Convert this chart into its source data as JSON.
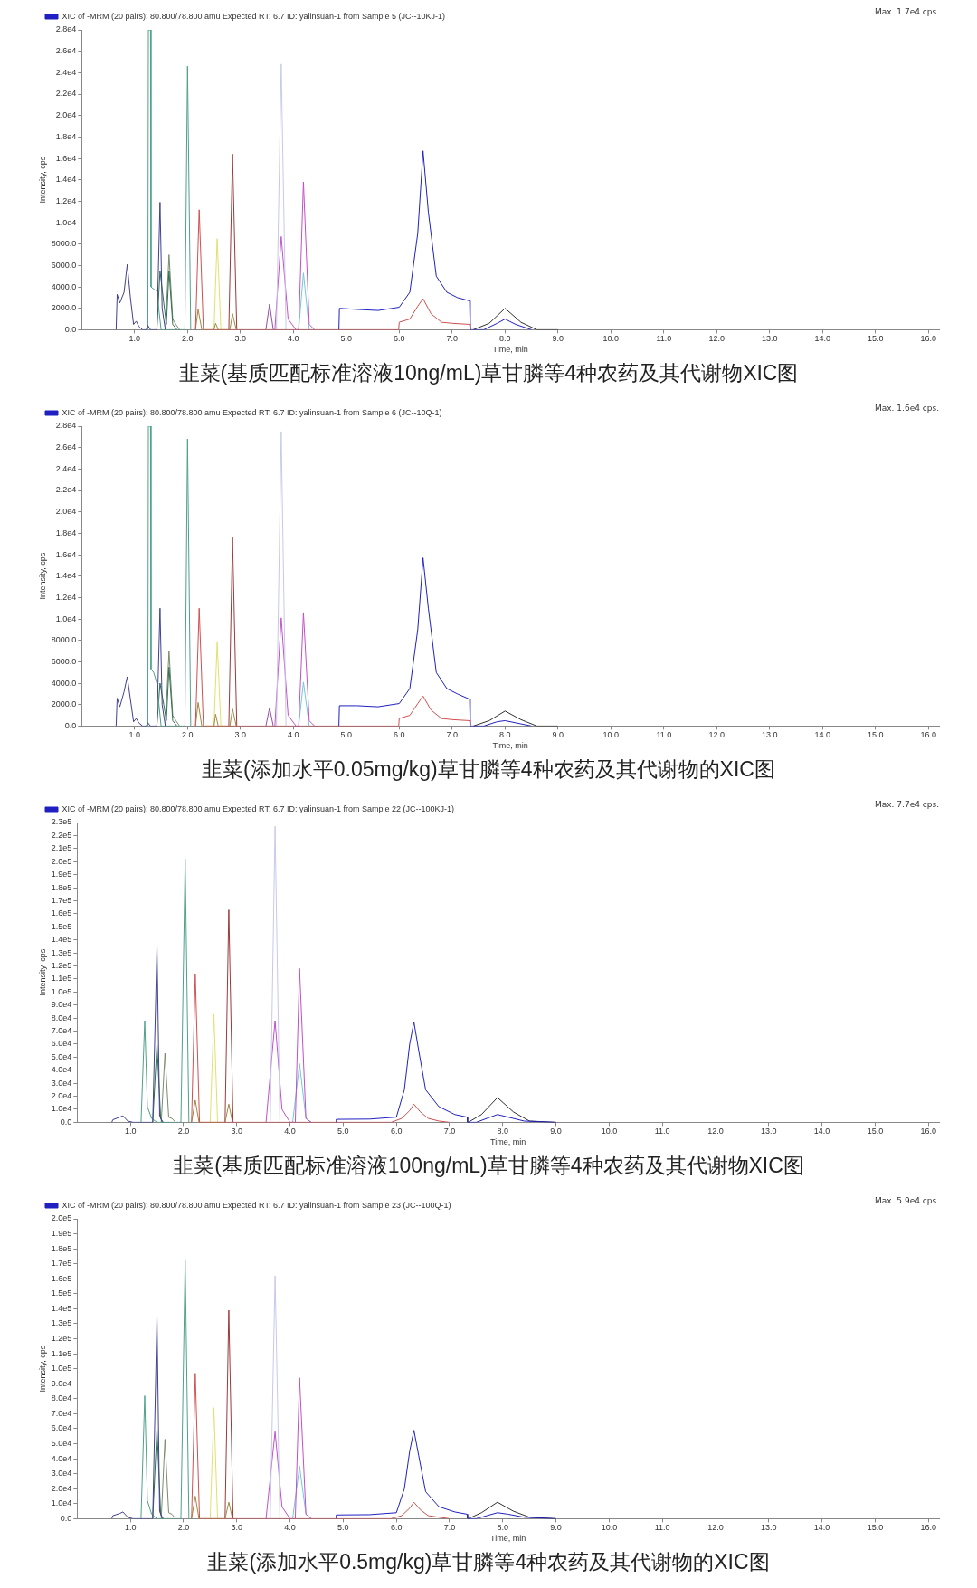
{
  "chart_data": [
    {
      "type": "line",
      "title": "韭菜(基质匹配标准溶液10ng/mL)草甘膦等4种农药及其代谢物XIC图",
      "xlabel": "Time, min",
      "ylabel": "Intensity, cps",
      "legend": "top left",
      "marker": "none",
      "annotations": [
        "Max. 1.7e4 cps."
      ],
      "xlim": [
        0,
        16.2
      ],
      "xticks": [
        {
          "value": 1,
          "label": "1.0"
        },
        {
          "value": 2,
          "label": "2.0"
        },
        {
          "value": 3,
          "label": "3.0"
        },
        {
          "value": 4,
          "label": "4.0"
        },
        {
          "value": 5,
          "label": "5.0"
        },
        {
          "value": 6,
          "label": "6.0"
        },
        {
          "value": 7,
          "label": "7.0"
        },
        {
          "value": 8,
          "label": "8.0"
        },
        {
          "value": 9,
          "label": "9.0"
        },
        {
          "value": 10,
          "label": "10.0"
        },
        {
          "value": 11,
          "label": "11.0"
        },
        {
          "value": 12,
          "label": "12.0"
        },
        {
          "value": 13,
          "label": "13.0"
        },
        {
          "value": 14,
          "label": "14.0"
        },
        {
          "value": 15,
          "label": "15.0"
        },
        {
          "value": 16,
          "label": "16.0"
        }
      ],
      "ylim": [
        0,
        28000
      ],
      "yticks": [
        {
          "value": 0,
          "label": "0.0"
        },
        {
          "value": 2000,
          "label": "2000.0"
        },
        {
          "value": 4000,
          "label": "4000.0"
        },
        {
          "value": 6000,
          "label": "6000.0"
        },
        {
          "value": 8000,
          "label": "8000.0"
        },
        {
          "value": 10000,
          "label": "1.0e4"
        },
        {
          "value": 12000,
          "label": "1.2e4"
        },
        {
          "value": 14000,
          "label": "1.4e4"
        },
        {
          "value": 16000,
          "label": "1.6e4"
        },
        {
          "value": 18000,
          "label": "1.8e4"
        },
        {
          "value": 20000,
          "label": "2.0e4"
        },
        {
          "value": 22000,
          "label": "2.2e4"
        },
        {
          "value": 24000,
          "label": "2.4e4"
        },
        {
          "value": 26000,
          "label": "2.6e4"
        },
        {
          "value": 28000,
          "label": "2.8e4"
        }
      ],
      "series": [
        {
          "color": "#404090",
          "x": [
            0.65,
            0.67,
            0.72,
            0.8,
            0.86,
            0.92,
            0.98,
            1.03,
            1.08,
            1.15,
            1.22,
            1.25,
            1.3,
            1.42,
            1.48,
            1.52,
            1.58
          ],
          "values": [
            0,
            3300,
            2500,
            3500,
            6100,
            3000,
            500,
            800,
            300,
            0,
            0,
            400,
            0,
            0,
            11900,
            2000,
            0
          ]
        },
        {
          "color": "#4fa08a",
          "x": [
            1.22,
            1.25,
            1.26,
            1.3,
            1.31,
            1.36,
            1.42,
            1.5,
            1.95,
            2.0,
            2.06
          ],
          "values": [
            0,
            0,
            28000,
            28000,
            4000,
            3800,
            3600,
            0,
            0,
            24600,
            0
          ]
        },
        {
          "color": "#2f6f4f",
          "x": [
            1.42,
            1.48,
            1.55,
            1.6,
            1.65,
            1.72,
            1.8
          ],
          "values": [
            0,
            5500,
            2500,
            500,
            5500,
            500,
            0
          ]
        },
        {
          "color": "#7a8a70",
          "x": [
            1.58,
            1.65,
            1.72,
            1.78,
            1.85
          ],
          "values": [
            0,
            7000,
            1000,
            500,
            0
          ]
        },
        {
          "color": "#d05050",
          "x": [
            2.15,
            2.22,
            2.3,
            5.99,
            6.0,
            6.2,
            6.35,
            6.45,
            6.6,
            6.8,
            7.0,
            7.33,
            7.34
          ],
          "values": [
            0,
            11200,
            0,
            0,
            700,
            1000,
            2200,
            2900,
            1500,
            700,
            600,
            500,
            0
          ]
        },
        {
          "color": "#a08a40",
          "x": [
            2.15,
            2.2,
            2.27,
            2.5,
            2.53,
            2.58,
            2.8,
            2.85,
            2.92
          ],
          "values": [
            0,
            1900,
            0,
            0,
            600,
            0,
            0,
            1500,
            0
          ]
        },
        {
          "color": "#e0e070",
          "x": [
            2.5,
            2.56,
            2.63
          ],
          "values": [
            0,
            8500,
            0
          ]
        },
        {
          "color": "#9a3a3a",
          "x": [
            2.78,
            2.85,
            2.93
          ],
          "values": [
            0,
            16400,
            0
          ]
        },
        {
          "color": "#9050a0",
          "x": [
            3.48,
            3.55,
            3.62
          ],
          "values": [
            0,
            2400,
            0
          ]
        },
        {
          "color": "#c8c8ec",
          "x": [
            3.68,
            3.77,
            3.86
          ],
          "values": [
            0,
            24800,
            0
          ]
        },
        {
          "color": "#c050c8",
          "x": [
            3.65,
            3.77,
            3.9,
            4.05,
            4.1,
            4.19,
            4.3,
            4.4
          ],
          "values": [
            0,
            8700,
            1000,
            0,
            0,
            13800,
            500,
            0
          ]
        },
        {
          "color": "#70c8d8",
          "x": [
            4.1,
            4.19,
            4.3
          ],
          "values": [
            0,
            5300,
            0
          ]
        },
        {
          "name": "XIC of -MRM (20 pairs): 80.800/78.800 amu Expected RT: 6.7 ID: yalinsuan-1 from Sample 5 (JC--10KJ-1)",
          "color": "#2020c0",
          "x": [
            4.86,
            4.87,
            5.2,
            5.6,
            6.0,
            6.2,
            6.35,
            6.45,
            6.55,
            6.7,
            6.9,
            7.1,
            7.33,
            7.34,
            7.6,
            7.85,
            8.0,
            8.2,
            8.5
          ],
          "values": [
            0,
            2000,
            1900,
            1800,
            2100,
            3500,
            9000,
            16700,
            11000,
            5000,
            3500,
            3000,
            2700,
            0,
            0,
            600,
            1000,
            500,
            0
          ]
        },
        {
          "color": "#303030",
          "x": [
            7.4,
            7.7,
            8.0,
            8.3,
            8.6,
            9.0
          ],
          "values": [
            0,
            600,
            2000,
            700,
            0,
            0
          ]
        }
      ]
    },
    {
      "type": "line",
      "title": "韭菜(添加水平0.05mg/kg)草甘膦等4种农药及其代谢物的XIC图",
      "xlabel": "Time, min",
      "ylabel": "Intensity, cps",
      "legend": "top left",
      "marker": "none",
      "annotations": [
        "Max. 1.6e4 cps."
      ],
      "xlim": [
        0,
        16.2
      ],
      "xticks": [
        {
          "value": 1,
          "label": "1.0"
        },
        {
          "value": 2,
          "label": "2.0"
        },
        {
          "value": 3,
          "label": "3.0"
        },
        {
          "value": 4,
          "label": "4.0"
        },
        {
          "value": 5,
          "label": "5.0"
        },
        {
          "value": 6,
          "label": "6.0"
        },
        {
          "value": 7,
          "label": "7.0"
        },
        {
          "value": 8,
          "label": "8.0"
        },
        {
          "value": 9,
          "label": "9.0"
        },
        {
          "value": 10,
          "label": "10.0"
        },
        {
          "value": 11,
          "label": "11.0"
        },
        {
          "value": 12,
          "label": "12.0"
        },
        {
          "value": 13,
          "label": "13.0"
        },
        {
          "value": 14,
          "label": "14.0"
        },
        {
          "value": 15,
          "label": "15.0"
        },
        {
          "value": 16,
          "label": "16.0"
        }
      ],
      "ylim": [
        0,
        28000
      ],
      "yticks": [
        {
          "value": 0,
          "label": "0.0"
        },
        {
          "value": 2000,
          "label": "2000.0"
        },
        {
          "value": 4000,
          "label": "4000.0"
        },
        {
          "value": 6000,
          "label": "6000.0"
        },
        {
          "value": 8000,
          "label": "8000.0"
        },
        {
          "value": 10000,
          "label": "1.0e4"
        },
        {
          "value": 12000,
          "label": "1.2e4"
        },
        {
          "value": 14000,
          "label": "1.4e4"
        },
        {
          "value": 16000,
          "label": "1.6e4"
        },
        {
          "value": 18000,
          "label": "1.8e4"
        },
        {
          "value": 20000,
          "label": "2.0e4"
        },
        {
          "value": 22000,
          "label": "2.2e4"
        },
        {
          "value": 24000,
          "label": "2.4e4"
        },
        {
          "value": 26000,
          "label": "2.6e4"
        },
        {
          "value": 28000,
          "label": "2.8e4"
        }
      ],
      "series": [
        {
          "color": "#404090",
          "x": [
            0.65,
            0.67,
            0.72,
            0.8,
            0.86,
            0.92,
            0.98,
            1.03,
            1.08,
            1.15,
            1.22,
            1.25,
            1.3,
            1.42,
            1.48,
            1.52,
            1.58
          ],
          "values": [
            0,
            2600,
            1800,
            3200,
            4600,
            2500,
            400,
            700,
            300,
            0,
            0,
            300,
            0,
            0,
            11000,
            2000,
            0
          ]
        },
        {
          "color": "#4fa08a",
          "x": [
            1.22,
            1.25,
            1.26,
            1.3,
            1.31,
            1.36,
            1.42,
            1.5,
            1.95,
            2.0,
            2.06
          ],
          "values": [
            0,
            0,
            28000,
            28000,
            5300,
            5000,
            4000,
            0,
            0,
            26800,
            0
          ]
        },
        {
          "color": "#2f6f4f",
          "x": [
            1.42,
            1.48,
            1.55,
            1.6,
            1.65,
            1.72,
            1.8
          ],
          "values": [
            0,
            4000,
            2000,
            500,
            5500,
            500,
            0
          ]
        },
        {
          "color": "#7a8a70",
          "x": [
            1.58,
            1.65,
            1.72,
            1.78,
            1.85
          ],
          "values": [
            0,
            7000,
            1000,
            500,
            0
          ]
        },
        {
          "color": "#d05050",
          "x": [
            2.15,
            2.22,
            2.3,
            5.99,
            6.0,
            6.2,
            6.35,
            6.45,
            6.6,
            6.8,
            7.0,
            7.33,
            7.34
          ],
          "values": [
            0,
            11000,
            0,
            0,
            700,
            1000,
            2100,
            2800,
            1500,
            700,
            600,
            500,
            0
          ]
        },
        {
          "color": "#a08a40",
          "x": [
            2.15,
            2.2,
            2.27,
            2.5,
            2.53,
            2.58,
            2.8,
            2.85,
            2.92
          ],
          "values": [
            0,
            2200,
            0,
            0,
            1100,
            0,
            0,
            1600,
            0
          ]
        },
        {
          "color": "#e0e070",
          "x": [
            2.5,
            2.56,
            2.63
          ],
          "values": [
            0,
            7800,
            0
          ]
        },
        {
          "color": "#9a3a3a",
          "x": [
            2.78,
            2.85,
            2.93
          ],
          "values": [
            0,
            17600,
            0
          ]
        },
        {
          "color": "#9050a0",
          "x": [
            3.48,
            3.55,
            3.62
          ],
          "values": [
            0,
            1700,
            0
          ]
        },
        {
          "color": "#c8c8ec",
          "x": [
            3.68,
            3.77,
            3.86
          ],
          "values": [
            0,
            27500,
            0
          ]
        },
        {
          "color": "#c050c8",
          "x": [
            3.65,
            3.77,
            3.9,
            4.05,
            4.1,
            4.19,
            4.3,
            4.4
          ],
          "values": [
            0,
            10100,
            1000,
            0,
            0,
            10600,
            500,
            0
          ]
        },
        {
          "color": "#70c8d8",
          "x": [
            4.1,
            4.19,
            4.3
          ],
          "values": [
            0,
            4100,
            0
          ]
        },
        {
          "name": "XIC of -MRM (20 pairs): 80.800/78.800 amu Expected RT: 6.7 ID: yalinsuan-1 from Sample 6 (JC--10Q-1)",
          "color": "#2020c0",
          "x": [
            4.86,
            4.87,
            5.2,
            5.6,
            6.0,
            6.2,
            6.35,
            6.45,
            6.55,
            6.7,
            6.9,
            7.1,
            7.33,
            7.34,
            7.6,
            7.85,
            8.0,
            8.2,
            8.5
          ],
          "values": [
            0,
            1900,
            1900,
            1800,
            2100,
            3500,
            9000,
            15700,
            11000,
            5000,
            3500,
            3000,
            2500,
            0,
            0,
            400,
            500,
            300,
            0
          ]
        },
        {
          "color": "#303030",
          "x": [
            7.4,
            7.7,
            8.0,
            8.3,
            8.6,
            9.0
          ],
          "values": [
            0,
            500,
            1400,
            600,
            0,
            0
          ]
        }
      ]
    },
    {
      "type": "line",
      "title": "韭菜(基质匹配标准溶液100ng/mL)草甘膦等4种农药及其代谢物XIC图",
      "xlabel": "Time, min",
      "ylabel": "Intensity, cps",
      "legend": "top left",
      "marker": "none",
      "annotations": [
        "Max. 7.7e4 cps."
      ],
      "xlim": [
        0,
        16.2
      ],
      "xticks": [
        {
          "value": 1,
          "label": "1.0"
        },
        {
          "value": 2,
          "label": "2.0"
        },
        {
          "value": 3,
          "label": "3.0"
        },
        {
          "value": 4,
          "label": "4.0"
        },
        {
          "value": 5,
          "label": "5.0"
        },
        {
          "value": 6,
          "label": "6.0"
        },
        {
          "value": 7,
          "label": "7.0"
        },
        {
          "value": 8,
          "label": "8.0"
        },
        {
          "value": 9,
          "label": "9.0"
        },
        {
          "value": 10,
          "label": "10.0"
        },
        {
          "value": 11,
          "label": "11.0"
        },
        {
          "value": 12,
          "label": "12.0"
        },
        {
          "value": 13,
          "label": "13.0"
        },
        {
          "value": 14,
          "label": "14.0"
        },
        {
          "value": 15,
          "label": "15.0"
        },
        {
          "value": 16,
          "label": "16.0"
        }
      ],
      "ylim": [
        0,
        230000
      ],
      "yticks": [
        {
          "value": 0,
          "label": "0.0"
        },
        {
          "value": 10000,
          "label": "1.0e4"
        },
        {
          "value": 20000,
          "label": "2.0e4"
        },
        {
          "value": 30000,
          "label": "3.0e4"
        },
        {
          "value": 40000,
          "label": "4.0e4"
        },
        {
          "value": 50000,
          "label": "5.0e4"
        },
        {
          "value": 60000,
          "label": "6.0e4"
        },
        {
          "value": 70000,
          "label": "7.0e4"
        },
        {
          "value": 80000,
          "label": "8.0e4"
        },
        {
          "value": 90000,
          "label": "9.0e4"
        },
        {
          "value": 100000,
          "label": "1.0e5"
        },
        {
          "value": 110000,
          "label": "1.1e5"
        },
        {
          "value": 120000,
          "label": "1.2e5"
        },
        {
          "value": 130000,
          "label": "1.3e5"
        },
        {
          "value": 140000,
          "label": "1.4e5"
        },
        {
          "value": 150000,
          "label": "1.5e5"
        },
        {
          "value": 160000,
          "label": "1.6e5"
        },
        {
          "value": 170000,
          "label": "1.7e5"
        },
        {
          "value": 180000,
          "label": "1.8e5"
        },
        {
          "value": 190000,
          "label": "1.9e5"
        },
        {
          "value": 200000,
          "label": "2.0e5"
        },
        {
          "value": 210000,
          "label": "2.1e5"
        },
        {
          "value": 220000,
          "label": "2.2e5"
        },
        {
          "value": 230000,
          "label": "2.3e5"
        }
      ],
      "series": [
        {
          "color": "#404090",
          "x": [
            0.65,
            0.67,
            0.8,
            0.86,
            0.95,
            1.05,
            1.42,
            1.5,
            1.55,
            1.6
          ],
          "values": [
            0,
            2000,
            4000,
            5000,
            1000,
            0,
            0,
            135000,
            5000,
            0
          ]
        },
        {
          "color": "#4fa08a",
          "x": [
            1.2,
            1.27,
            1.32,
            1.4,
            1.5,
            1.95,
            2.03,
            2.1
          ],
          "values": [
            0,
            78000,
            12000,
            3000,
            0,
            0,
            202000,
            0
          ]
        },
        {
          "color": "#2f6f4f",
          "x": [
            1.42,
            1.5,
            1.57,
            1.62
          ],
          "values": [
            0,
            60000,
            3000,
            0
          ]
        },
        {
          "color": "#7a8a70",
          "x": [
            1.58,
            1.65,
            1.72,
            1.78,
            1.85
          ],
          "values": [
            0,
            53000,
            4000,
            3000,
            0
          ]
        },
        {
          "color": "#d05050",
          "x": [
            2.15,
            2.22,
            2.3,
            5.9,
            6.1,
            6.25,
            6.33,
            6.45,
            6.6,
            6.8,
            7.0
          ],
          "values": [
            0,
            114000,
            0,
            0,
            3000,
            9000,
            14000,
            8000,
            3000,
            1000,
            0
          ]
        },
        {
          "color": "#a08a40",
          "x": [
            2.15,
            2.22,
            2.29,
            2.78,
            2.85,
            2.92
          ],
          "values": [
            0,
            17000,
            0,
            0,
            14000,
            0
          ]
        },
        {
          "color": "#e0e070",
          "x": [
            2.5,
            2.57,
            2.64
          ],
          "values": [
            0,
            83000,
            0
          ]
        },
        {
          "color": "#9a3a3a",
          "x": [
            2.78,
            2.85,
            2.93
          ],
          "values": [
            0,
            163000,
            0
          ]
        },
        {
          "color": "#c8c8ec",
          "x": [
            3.63,
            3.72,
            3.81
          ],
          "values": [
            0,
            227000,
            0
          ]
        },
        {
          "color": "#c050c8",
          "x": [
            3.55,
            3.72,
            3.85,
            4.0,
            4.1,
            4.18,
            4.3,
            4.4
          ],
          "values": [
            0,
            78000,
            10000,
            0,
            0,
            118000,
            3000,
            0
          ]
        },
        {
          "color": "#70c8d8",
          "x": [
            4.05,
            4.18,
            4.3,
            4.4
          ],
          "values": [
            0,
            45000,
            3000,
            0
          ]
        },
        {
          "name": "XIC of -MRM (20 pairs): 80.800/78.800 amu Expected RT: 6.7 ID: yalinsuan-1 from Sample 22 (JC--100KJ-1)",
          "color": "#2020c0",
          "x": [
            4.86,
            4.87,
            5.5,
            6.0,
            6.15,
            6.25,
            6.33,
            6.42,
            6.55,
            6.8,
            7.1,
            7.33,
            7.34,
            7.5,
            7.7,
            7.9,
            8.1,
            8.4,
            9.0
          ],
          "values": [
            0,
            2300,
            2500,
            4000,
            25000,
            60000,
            77000,
            55000,
            25000,
            12000,
            6000,
            4000,
            0,
            0,
            3000,
            6000,
            4000,
            1000,
            0
          ]
        },
        {
          "color": "#303030",
          "x": [
            7.35,
            7.6,
            7.9,
            8.2,
            8.5,
            9.0
          ],
          "values": [
            0,
            6000,
            19000,
            8000,
            1000,
            0
          ]
        }
      ]
    },
    {
      "type": "line",
      "title": "韭菜(添加水平0.5mg/kg)草甘膦等4种农药及其代谢物的XIC图",
      "xlabel": "Time, min",
      "ylabel": "Intensity, cps",
      "legend": "top left",
      "marker": "none",
      "annotations": [
        "Max. 5.9e4 cps."
      ],
      "xlim": [
        0,
        16.2
      ],
      "xticks": [
        {
          "value": 1,
          "label": "1.0"
        },
        {
          "value": 2,
          "label": "2.0"
        },
        {
          "value": 3,
          "label": "3.0"
        },
        {
          "value": 4,
          "label": "4.0"
        },
        {
          "value": 5,
          "label": "5.0"
        },
        {
          "value": 6,
          "label": "6.0"
        },
        {
          "value": 7,
          "label": "7.0"
        },
        {
          "value": 8,
          "label": "8.0"
        },
        {
          "value": 9,
          "label": "9.0"
        },
        {
          "value": 10,
          "label": "10.0"
        },
        {
          "value": 11,
          "label": "11.0"
        },
        {
          "value": 12,
          "label": "12.0"
        },
        {
          "value": 13,
          "label": "13.0"
        },
        {
          "value": 14,
          "label": "14.0"
        },
        {
          "value": 15,
          "label": "15.0"
        },
        {
          "value": 16,
          "label": "16.0"
        }
      ],
      "ylim": [
        0,
        200000
      ],
      "yticks": [
        {
          "value": 0,
          "label": "0.0"
        },
        {
          "value": 10000,
          "label": "1.0e4"
        },
        {
          "value": 20000,
          "label": "2.0e4"
        },
        {
          "value": 30000,
          "label": "3.0e4"
        },
        {
          "value": 40000,
          "label": "4.0e4"
        },
        {
          "value": 50000,
          "label": "5.0e4"
        },
        {
          "value": 60000,
          "label": "6.0e4"
        },
        {
          "value": 70000,
          "label": "7.0e4"
        },
        {
          "value": 80000,
          "label": "8.0e4"
        },
        {
          "value": 90000,
          "label": "9.0e4"
        },
        {
          "value": 100000,
          "label": "1.0e5"
        },
        {
          "value": 110000,
          "label": "1.1e5"
        },
        {
          "value": 120000,
          "label": "1.2e5"
        },
        {
          "value": 130000,
          "label": "1.3e5"
        },
        {
          "value": 140000,
          "label": "1.4e5"
        },
        {
          "value": 150000,
          "label": "1.5e5"
        },
        {
          "value": 160000,
          "label": "1.6e5"
        },
        {
          "value": 170000,
          "label": "1.7e5"
        },
        {
          "value": 180000,
          "label": "1.8e5"
        },
        {
          "value": 190000,
          "label": "1.9e5"
        },
        {
          "value": 200000,
          "label": "2.0e5"
        }
      ],
      "series": [
        {
          "color": "#404090",
          "x": [
            0.65,
            0.67,
            0.8,
            0.86,
            0.95,
            1.05,
            1.42,
            1.5,
            1.55,
            1.6
          ],
          "values": [
            0,
            2000,
            3500,
            4500,
            1000,
            0,
            0,
            135000,
            5000,
            0
          ]
        },
        {
          "color": "#4fa08a",
          "x": [
            1.2,
            1.27,
            1.32,
            1.4,
            1.5,
            1.95,
            2.03,
            2.1
          ],
          "values": [
            0,
            82000,
            12000,
            3000,
            0,
            0,
            173000,
            0
          ]
        },
        {
          "color": "#2f6f4f",
          "x": [
            1.42,
            1.5,
            1.57,
            1.62
          ],
          "values": [
            0,
            60000,
            3000,
            0
          ]
        },
        {
          "color": "#7a8a70",
          "x": [
            1.58,
            1.65,
            1.72,
            1.78,
            1.85
          ],
          "values": [
            0,
            53000,
            4000,
            3000,
            0
          ]
        },
        {
          "color": "#d05050",
          "x": [
            2.15,
            2.22,
            2.3,
            5.9,
            6.1,
            6.25,
            6.33,
            6.45,
            6.6,
            6.8,
            7.0
          ],
          "values": [
            0,
            97000,
            0,
            0,
            2000,
            7000,
            11000,
            6000,
            2000,
            1000,
            0
          ]
        },
        {
          "color": "#a08a40",
          "x": [
            2.15,
            2.22,
            2.29,
            2.78,
            2.85,
            2.92
          ],
          "values": [
            0,
            15000,
            0,
            0,
            11000,
            0
          ]
        },
        {
          "color": "#e0e070",
          "x": [
            2.5,
            2.57,
            2.64
          ],
          "values": [
            0,
            74000,
            0
          ]
        },
        {
          "color": "#9a3a3a",
          "x": [
            2.78,
            2.85,
            2.93
          ],
          "values": [
            0,
            139000,
            0
          ]
        },
        {
          "color": "#c8c8ec",
          "x": [
            3.63,
            3.72,
            3.81
          ],
          "values": [
            0,
            162000,
            0
          ]
        },
        {
          "color": "#c050c8",
          "x": [
            3.55,
            3.72,
            3.85,
            4.0,
            4.1,
            4.18,
            4.3,
            4.4
          ],
          "values": [
            0,
            58000,
            8000,
            0,
            0,
            94000,
            3000,
            0
          ]
        },
        {
          "color": "#70c8d8",
          "x": [
            4.05,
            4.18,
            4.3,
            4.4
          ],
          "values": [
            0,
            35000,
            3000,
            0
          ]
        },
        {
          "name": "XIC of -MRM (20 pairs): 80.800/78.800 amu Expected RT: 6.7 ID: yalinsuan-1 from Sample 23 (JC--100Q-1)",
          "color": "#2020c0",
          "x": [
            4.86,
            4.87,
            5.5,
            6.0,
            6.15,
            6.25,
            6.33,
            6.42,
            6.55,
            6.8,
            7.1,
            7.33,
            7.34,
            7.5,
            7.7,
            7.9,
            8.1,
            8.4,
            9.0
          ],
          "values": [
            0,
            2500,
            2700,
            4000,
            20000,
            45000,
            59000,
            42000,
            18000,
            8000,
            4500,
            3000,
            0,
            0,
            2000,
            4000,
            3000,
            1000,
            0
          ]
        },
        {
          "color": "#303030",
          "x": [
            7.35,
            7.6,
            7.9,
            8.2,
            8.5,
            9.0
          ],
          "values": [
            0,
            4000,
            11000,
            5000,
            1000,
            0
          ]
        }
      ]
    }
  ]
}
